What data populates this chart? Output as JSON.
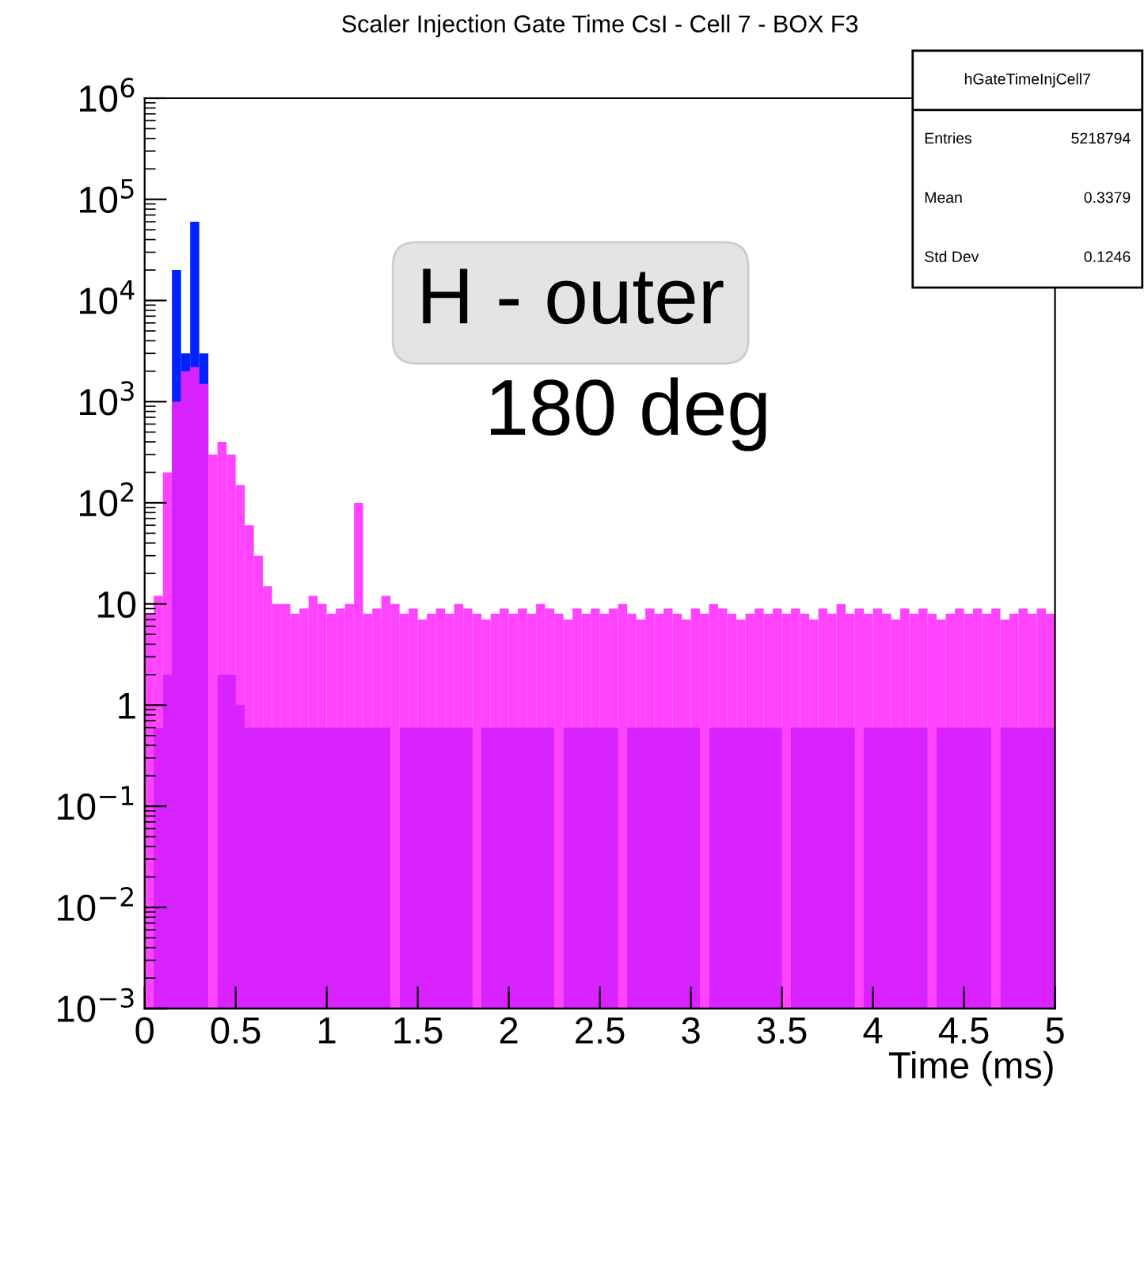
{
  "chart_data": {
    "type": "histogram",
    "title": "Scaler Injection Gate Time CsI - Cell 7 - BOX F3",
    "xlabel": "Time (ms)",
    "bins": [
      0,
      0.05,
      0.1,
      0.15,
      0.2,
      0.25,
      0.3,
      0.35,
      0.4,
      0.45,
      0.5,
      0.55,
      0.6,
      0.65,
      0.7,
      0.75,
      0.8,
      0.85,
      0.9,
      0.95,
      1,
      1.05,
      1.1,
      1.15,
      1.2,
      1.25,
      1.3,
      1.35,
      1.4,
      1.45,
      1.5,
      1.55,
      1.6,
      1.65,
      1.7,
      1.75,
      1.8,
      1.85,
      1.9,
      1.95,
      2,
      2.05,
      2.1,
      2.15,
      2.2,
      2.25,
      2.3,
      2.35,
      2.4,
      2.45,
      2.5,
      2.55,
      2.6,
      2.65,
      2.7,
      2.75,
      2.8,
      2.85,
      2.9,
      2.95,
      3,
      3.05,
      3.1,
      3.15,
      3.2,
      3.25,
      3.3,
      3.35,
      3.4,
      3.45,
      3.5,
      3.55,
      3.6,
      3.65,
      3.7,
      3.75,
      3.8,
      3.85,
      3.9,
      3.95,
      4,
      4.05,
      4.1,
      4.15,
      4.2,
      4.25,
      4.3,
      4.35,
      4.4,
      4.45,
      4.5,
      4.55,
      4.6,
      4.65,
      4.7,
      4.75,
      4.8,
      4.85,
      4.9,
      4.95,
      5
    ],
    "series": [
      {
        "color": "#0022ff",
        "values": [
          null,
          0.6,
          2,
          20000,
          3000,
          60000,
          3000,
          null,
          2,
          2,
          1,
          0.6,
          0.6,
          0.6,
          0.6,
          0.6,
          0.6,
          0.6,
          0.6,
          0.6,
          0.6,
          0.6,
          0.6,
          0.6,
          0.6,
          0.6,
          0.6,
          null,
          0.6,
          0.6,
          0.6,
          0.6,
          0.6,
          0.6,
          0.6,
          0.6,
          null,
          0.6,
          0.6,
          0.6,
          0.6,
          0.6,
          0.6,
          0.6,
          0.6,
          null,
          0.6,
          0.6,
          0.6,
          0.6,
          0.6,
          0.6,
          null,
          0.6,
          0.6,
          0.6,
          0.6,
          0.6,
          0.6,
          0.6,
          0.6,
          null,
          0.6,
          0.6,
          0.6,
          0.6,
          0.6,
          0.6,
          0.6,
          0.6,
          null,
          0.6,
          0.6,
          0.6,
          0.6,
          0.6,
          0.6,
          0.6,
          null,
          0.6,
          0.6,
          0.6,
          0.6,
          0.6,
          0.6,
          0.6,
          null,
          0.6,
          0.6,
          0.6,
          0.6,
          0.6,
          0.6,
          null,
          0.6,
          0.6,
          0.6,
          0.6,
          0.6,
          0.6
        ]
      },
      {
        "color": "#ff22ff",
        "values": [
          8,
          12,
          200,
          1000,
          2000,
          2200,
          1500,
          300,
          400,
          300,
          150,
          60,
          30,
          15,
          10,
          10,
          8,
          9,
          12,
          10,
          8,
          9,
          10,
          100,
          8,
          9,
          12,
          10,
          8,
          9,
          7,
          8,
          9,
          8,
          10,
          9,
          8,
          7,
          8,
          9,
          8,
          9,
          8,
          10,
          9,
          8,
          7,
          9,
          8,
          9,
          8,
          9,
          10,
          8,
          7,
          9,
          8,
          9,
          8,
          7,
          9,
          8,
          10,
          9,
          8,
          7,
          8,
          9,
          8,
          9,
          8,
          9,
          8,
          7,
          9,
          8,
          10,
          8,
          9,
          8,
          9,
          8,
          7,
          9,
          8,
          9,
          8,
          7,
          8,
          9,
          8,
          9,
          8,
          9,
          7,
          8,
          9,
          8,
          9,
          8
        ]
      }
    ],
    "log": "y",
    "xlim": [
      0,
      5
    ],
    "ylim": [
      0.001,
      1000000
    ],
    "xticks": [
      0,
      0.5,
      1,
      1.5,
      2,
      2.5,
      3,
      3.5,
      4,
      4.5,
      5
    ],
    "yticks": [
      {
        "value": 0.001,
        "label": "10$^{−3}$"
      },
      {
        "value": 0.01,
        "label": "10$^{−2}$"
      },
      {
        "value": 0.1,
        "label": "10$^{−1}$"
      },
      1,
      10,
      {
        "value": 100,
        "label": "10$^{2}$"
      },
      {
        "value": 1000,
        "label": "10$^{3}$"
      },
      {
        "value": 10000,
        "label": "10$^{4}$"
      },
      {
        "value": 100000,
        "label": "10$^{5}$"
      },
      {
        "value": 1000000,
        "label": "10$^{6}$"
      }
    ],
    "grid": false,
    "annotations": [
      "hGateTimeInjCell7",
      "Entries",
      "5218794",
      "Mean",
      "0.3379",
      "Std Dev",
      "0.1246",
      "H - outer",
      "180 deg"
    ]
  }
}
